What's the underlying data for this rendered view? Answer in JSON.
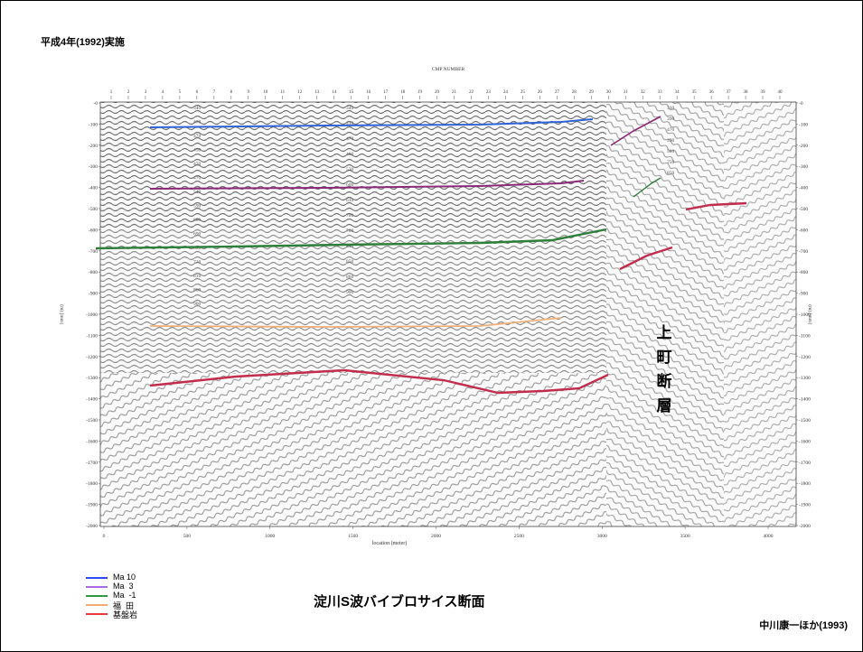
{
  "header": {
    "survey_label": "平成4年(1992)実施"
  },
  "section": {
    "top_axis_title": "CMP NUMBER",
    "cmp_ticks": [
      "1",
      "2",
      "3",
      "4",
      "5",
      "6",
      "7",
      "8",
      "9",
      "10",
      "11",
      "12",
      "13",
      "14",
      "15",
      "16",
      "17",
      "18",
      "19",
      "20",
      "21",
      "22",
      "23",
      "24",
      "25",
      "26",
      "27",
      "28",
      "29",
      "30",
      "31",
      "32",
      "33",
      "34",
      "35",
      "36",
      "37",
      "38",
      "39",
      "40"
    ],
    "depth_ticks": [
      "-0",
      "-100",
      "-200",
      "-300",
      "-400",
      "-500",
      "-600",
      "-700",
      "-800",
      "-900",
      "-1000",
      "-1100",
      "-1200",
      "-1300",
      "-1400",
      "-1500",
      "-1600",
      "-1700",
      "-1800",
      "-1900",
      "-2000"
    ],
    "location_ticks": [
      "0",
      "500",
      "1000",
      "1500",
      "2000",
      "2500",
      "3000",
      "3500",
      "4000"
    ],
    "x_axis_title": "location (meter)",
    "y_axis_title": "(m) [mm]",
    "velocity_col1": [
      "340",
      "470",
      "470",
      "450",
      "470",
      "470",
      "540",
      "590",
      "680",
      "690",
      "680",
      "710",
      "810",
      "860",
      "900"
    ],
    "velocity_col2": [
      "340",
      "410",
      "470",
      "460",
      "530",
      "600",
      "610",
      "700",
      "760",
      "810",
      "850",
      "860",
      "900"
    ],
    "velocity_col3": [
      "330",
      "390",
      "470",
      "490",
      "580",
      "750",
      "850"
    ]
  },
  "fault_label": "上町断層",
  "legend": {
    "items": [
      {
        "label": "Ma 10",
        "color": "#2F49F0"
      },
      {
        "label": "Ma  3",
        "color": "#A86BE8"
      },
      {
        "label": "Ma  -1",
        "color": "#2E9B3E"
      },
      {
        "label": "福  田",
        "color": "#F5A870"
      },
      {
        "label": "基盤岩",
        "color": "#E83A3A"
      }
    ]
  },
  "horizons": {
    "ma10_color": "#2F62D6",
    "ma3_color": "#8A2A78",
    "ma_minus1_color": "#2E7F3A",
    "fukuda_color": "#F2B079",
    "basement_color": "#C22D4E"
  },
  "title": "淀川S波バイブロサイス断面",
  "credit": "中川康一ほか(1993)"
}
